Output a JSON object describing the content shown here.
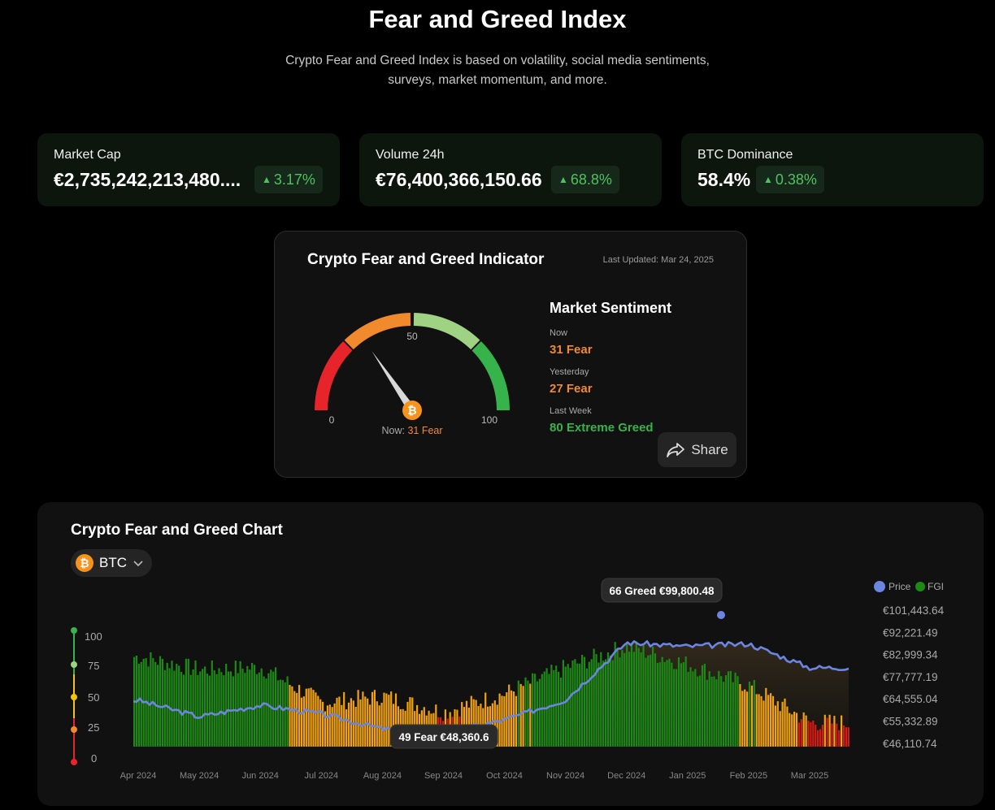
{
  "header": {
    "title": "Fear and Greed Index",
    "subtitle_line1": "Crypto Fear and Greed Index is based on volatility, social media sentiments,",
    "subtitle_line2": "surveys, market momentum, and more."
  },
  "stats": [
    {
      "label": "Market Cap",
      "value": "€2,735,242,213,480....",
      "change": "3.17%"
    },
    {
      "label": "Volume 24h",
      "value": "€76,400,366,150.66",
      "change": "68.8%"
    },
    {
      "label": "BTC Dominance",
      "value": "58.4%",
      "change": "0.38%"
    }
  ],
  "indicator": {
    "title": "Crypto Fear and Greed Indicator",
    "last_updated": "Last Updated: Mar 24, 2025",
    "gauge_value": 31,
    "tick_min": "0",
    "tick_mid": "50",
    "tick_max": "100",
    "now_prefix": "Now:",
    "now_text": "31 Fear",
    "sentiment_title": "Market Sentiment",
    "now_label": "Now",
    "now_value": "31 Fear",
    "yesterday_label": "Yesterday",
    "yesterday_value": "27 Fear",
    "lastweek_label": "Last Week",
    "lastweek_value": "80 Extreme Greed",
    "share_label": "Share"
  },
  "chart_section": {
    "title": "Crypto Fear and Greed Chart",
    "coin": "BTC",
    "legend_price": "Price",
    "legend_fgi": "FGI",
    "tooltip_high": "66 Greed €99,800.48",
    "tooltip_low": "49 Fear €48,360.6",
    "scale_labels": [
      "100",
      "75",
      "50",
      "25",
      "0"
    ]
  },
  "colors": {
    "extreme_fear": "#e8242b",
    "fear": "#f08a2c",
    "greed": "#9fd383",
    "extreme_greed": "#36b34a",
    "price_line": "#6b85e0",
    "bar_greed": "#1d8a16",
    "bar_fear": "#f2a20c",
    "bar_extreme_fear": "#d91a12"
  },
  "chart_data": {
    "type": "bar",
    "title": "Crypto Fear and Greed Chart",
    "x_ticks": [
      "Apr 2024",
      "May 2024",
      "Jun 2024",
      "Jul 2024",
      "Aug 2024",
      "Sep 2024",
      "Oct 2024",
      "Nov 2024",
      "Dec 2024",
      "Jan 2025",
      "Feb 2025",
      "Mar 2025"
    ],
    "y_left_ticks": [
      100,
      75,
      50,
      25,
      0
    ],
    "y_left_range": [
      0,
      100
    ],
    "y_right_ticks": [
      "€101,443.64",
      "€92,221.49",
      "€82,999.34",
      "€77,777.19",
      "€64,555.04",
      "€55,332.89",
      "€46,110.74"
    ],
    "y_right_range": [
      46110.74,
      101443.64
    ],
    "legend": [
      "Price",
      "FGI"
    ],
    "series": [
      {
        "name": "FGI",
        "type": "bar",
        "x": [
          "Apr 2024",
          "May 2024",
          "Jun 2024",
          "Jul 2024",
          "Aug 2024",
          "Sep 2024",
          "Oct 2024",
          "Nov 2024",
          "Dec 2024",
          "Jan 2025",
          "Feb 2025",
          "Mar 2025"
        ],
        "values": [
          80,
          70,
          72,
          45,
          50,
          38,
          52,
          72,
          88,
          74,
          58,
          30
        ]
      },
      {
        "name": "Price",
        "type": "line",
        "x": [
          "Apr 2024",
          "May 2024",
          "Jun 2024",
          "Jul 2024",
          "Aug 2024",
          "Sep 2024",
          "Oct 2024",
          "Nov 2024",
          "Dec 2024",
          "Jan 2025",
          "Feb 2025",
          "Mar 2025"
        ],
        "values": [
          64300,
          57500,
          62300,
          58700,
          52500,
          50700,
          56200,
          64500,
          88300,
          86700,
          87800,
          77900
        ]
      }
    ],
    "annotations": [
      {
        "x": "Jan 2025",
        "label": "66 Greed €99,800.48"
      },
      {
        "x": "Aug 2024",
        "label": "49 Fear €48,360.6"
      }
    ]
  }
}
